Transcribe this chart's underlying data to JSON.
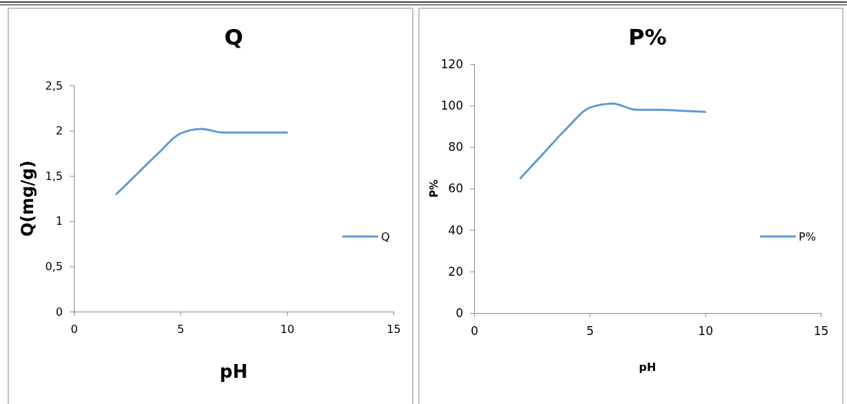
{
  "chart_data": [
    {
      "type": "line",
      "title": "Q",
      "xlabel": "pH",
      "ylabel": "Q(mg/g)",
      "x": [
        2,
        3,
        4,
        5,
        6,
        7,
        8,
        9,
        10
      ],
      "series": [
        {
          "name": "Q",
          "color": "#5b9bd5",
          "values": [
            1.3,
            1.53,
            1.76,
            1.97,
            2.02,
            1.98,
            1.98,
            1.98,
            1.98
          ]
        }
      ],
      "xlim": [
        0,
        15
      ],
      "xticks": [
        0,
        5,
        10,
        15
      ],
      "ylim": [
        0,
        2.5
      ],
      "yticks": [
        0,
        {
          "value": 0.5,
          "label": "0,5"
        },
        1,
        {
          "value": 1.5,
          "label": "1,5"
        },
        2,
        {
          "value": 2.5,
          "label": "2,5"
        }
      ],
      "legend": "right",
      "grid": false,
      "marker": "none",
      "line_style": "solid"
    },
    {
      "type": "line",
      "title": "P%",
      "xlabel": "pH",
      "ylabel": "P%",
      "x": [
        2,
        3,
        4,
        5,
        6,
        7,
        8,
        9,
        10
      ],
      "series": [
        {
          "name": "P%",
          "color": "#5b9bd5",
          "values": [
            65,
            77,
            89,
            99,
            101,
            98,
            98,
            97.5,
            97
          ]
        }
      ],
      "xlim": [
        0,
        15
      ],
      "xticks": [
        0,
        5,
        10,
        15
      ],
      "ylim": [
        0,
        120
      ],
      "yticks": [
        0,
        20,
        40,
        60,
        80,
        100,
        120
      ],
      "legend": "right",
      "grid": false,
      "marker": "none",
      "line_style": "solid"
    }
  ]
}
